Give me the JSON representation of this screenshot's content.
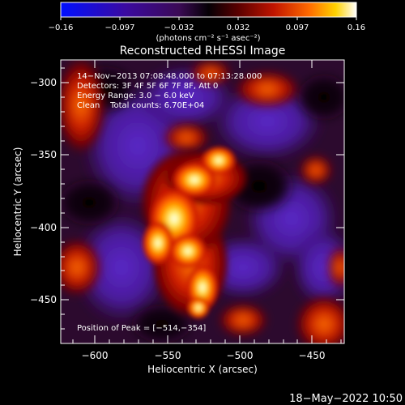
{
  "colorbar": {
    "tick_labels": [
      "−0.16",
      "−0.097",
      "−0.032",
      "0.032",
      "0.097",
      "0.16"
    ],
    "unit_label": "(photons cm⁻² s⁻¹ asec⁻²)",
    "colors": [
      "#0000ff",
      "#3a0078",
      "#4b0b6b",
      "#2a0018",
      "#000000",
      "#7a0000",
      "#c91500",
      "#ff6600",
      "#ffd400",
      "#ffffff"
    ]
  },
  "plot": {
    "title": "Reconstructed RHESSI Image",
    "xlabel": "Heliocentric X (arcsec)",
    "ylabel": "Heliocentric Y (arcsec)",
    "x_ticks": [
      "−600",
      "−550",
      "−500",
      "−450"
    ],
    "y_ticks": [
      "−300",
      "−350",
      "−400",
      "−450"
    ],
    "x_range": [
      -621,
      -425
    ],
    "y_range": [
      -483,
      -287
    ]
  },
  "annotation": {
    "line1": "14−Nov−2013 07:08:48.000 to 07:13:28.000",
    "line2": "Detectors: 3F 4F 5F 6F 7F 8F, Att 0",
    "line3": "Energy Range: 3.0 − 6.0 keV",
    "line4": "Clean    Total counts: 6.70E+04",
    "peak": "Position of Peak = [−514,−354]"
  },
  "footer": {
    "timestamp": "18−May−2022 10:50"
  }
}
